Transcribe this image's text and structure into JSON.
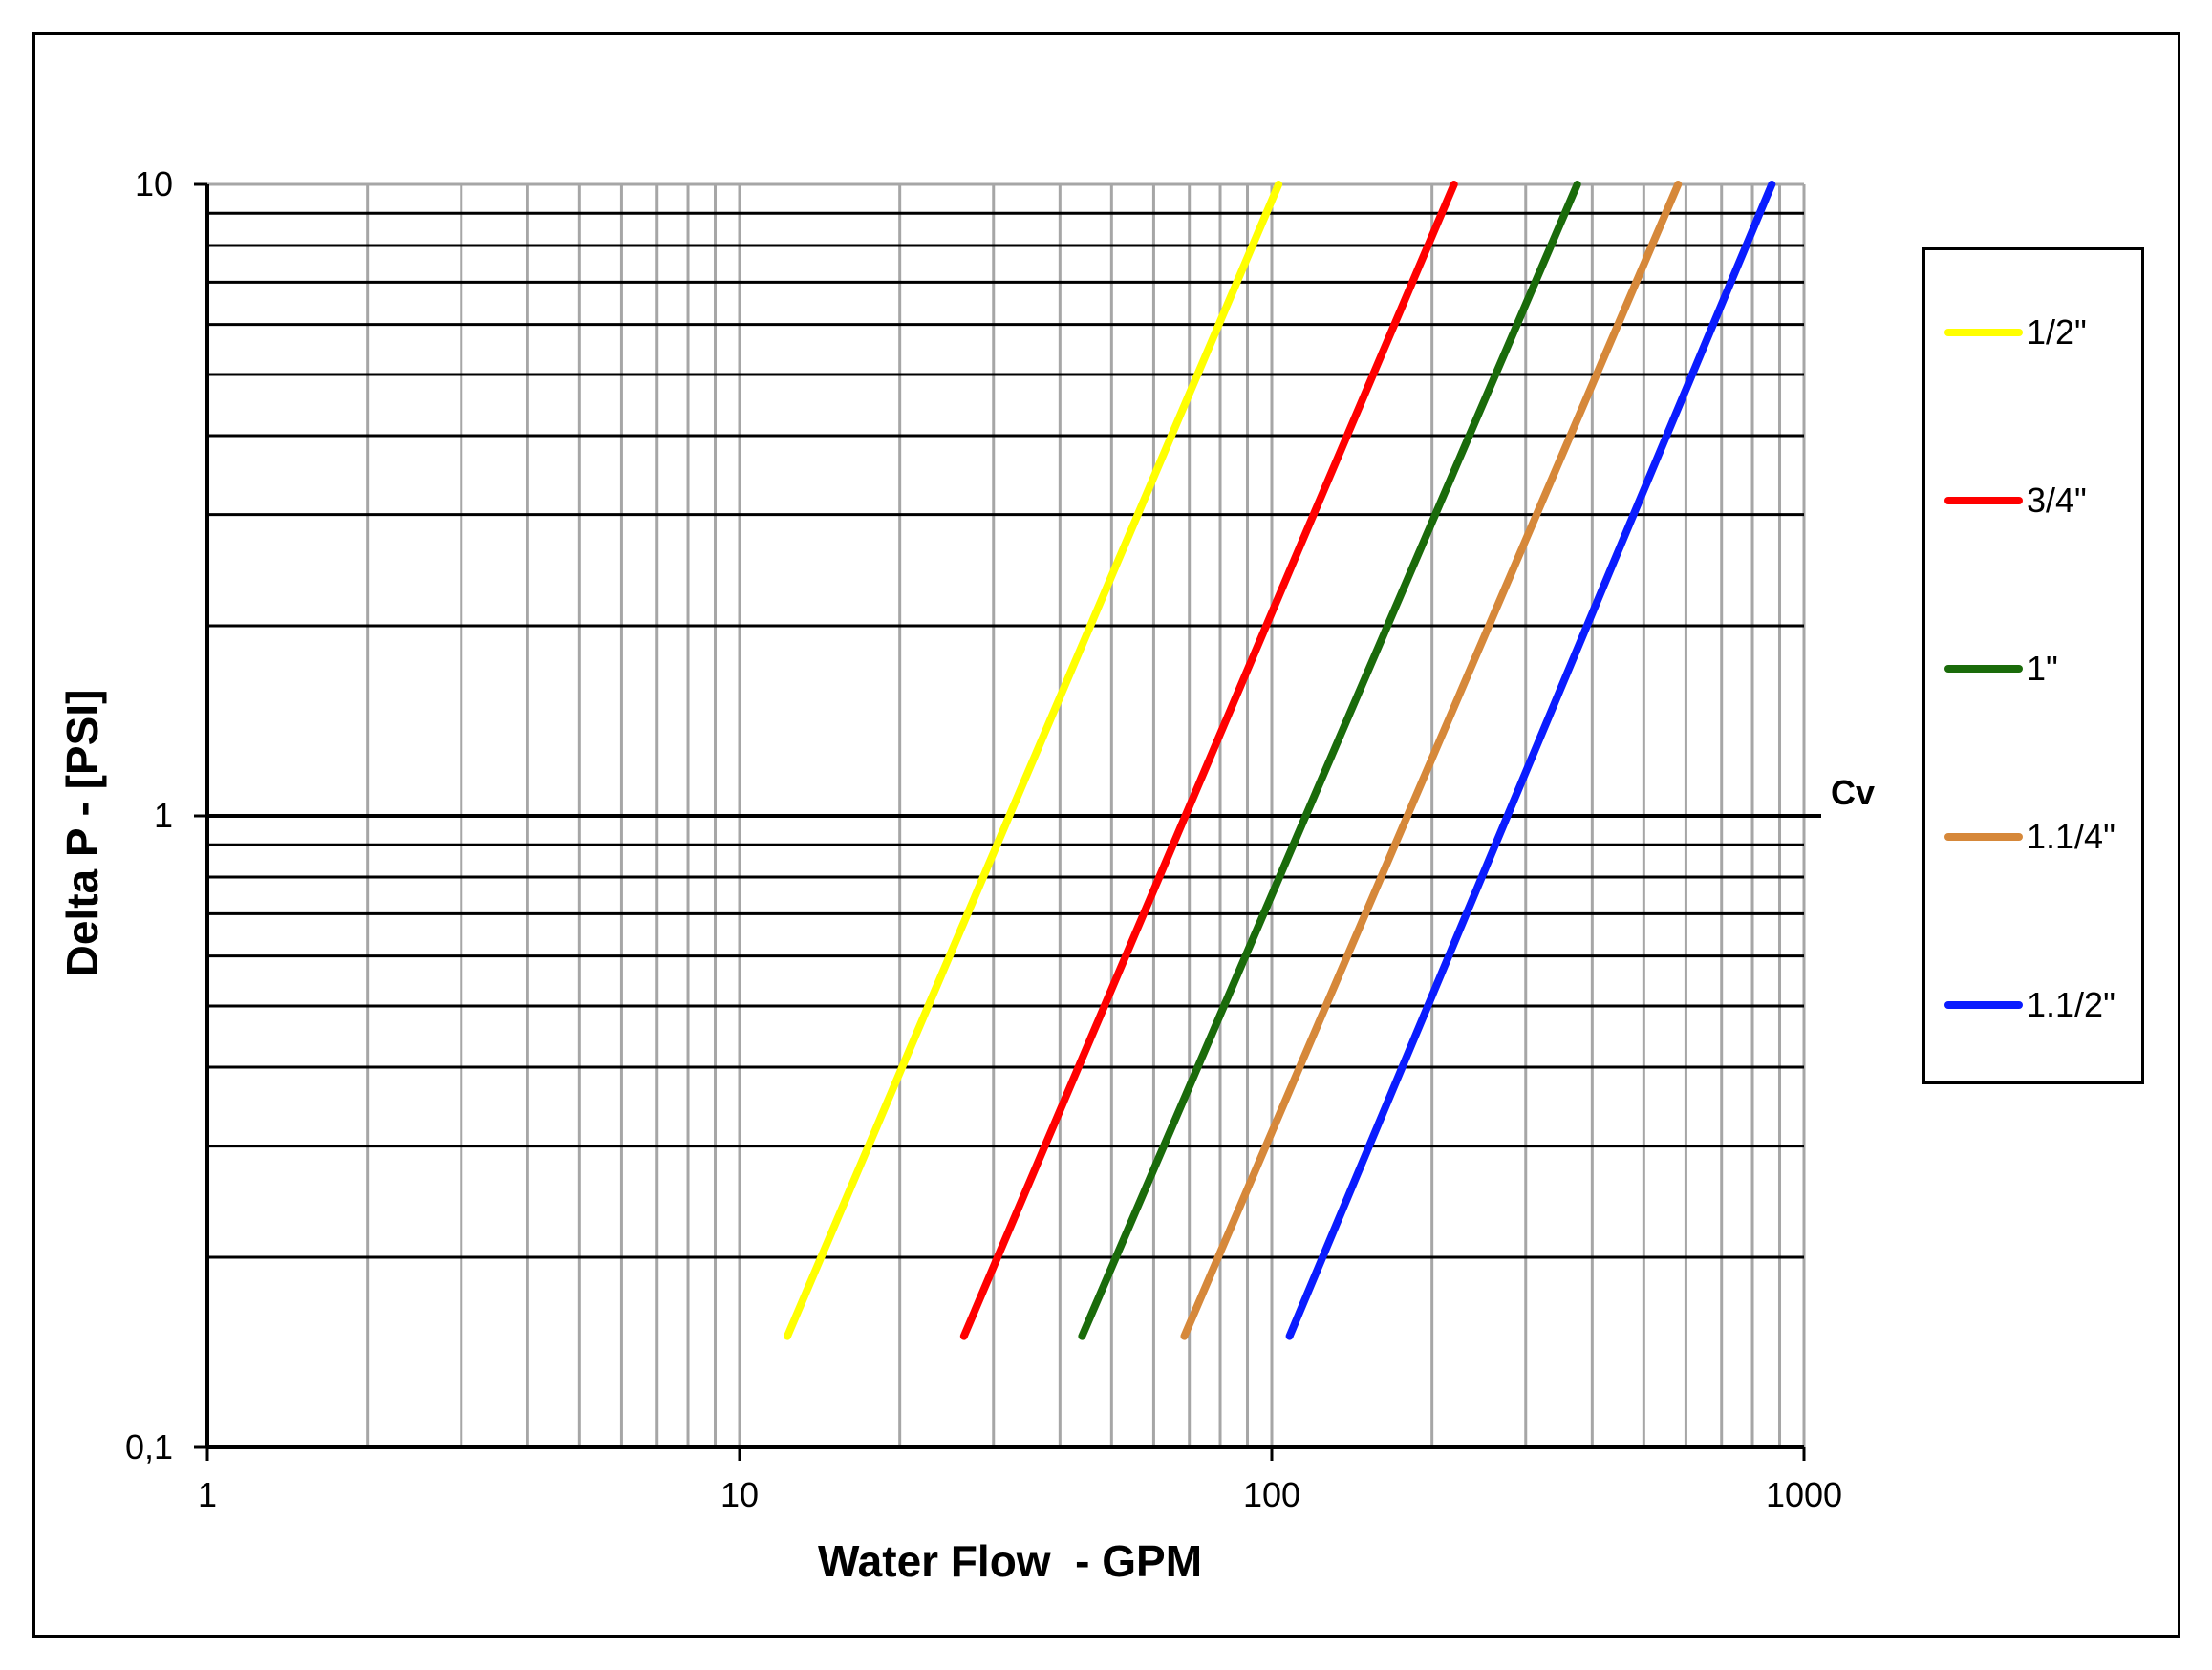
{
  "chart_data": {
    "type": "line",
    "xlabel": "Water Flow  - GPM",
    "ylabel": "Delta P - [PSI]",
    "x_scale": "log",
    "y_scale": "log",
    "xlim": [
      1,
      1000
    ],
    "ylim": [
      0.1,
      10
    ],
    "x_tick_labels": [
      "1",
      "10",
      "100",
      "1000"
    ],
    "y_tick_labels": [
      "0,1",
      "1",
      "10"
    ],
    "grid": true,
    "legend_position": "right",
    "reference_line": {
      "label": "Cv",
      "y": 1
    },
    "series": [
      {
        "name": "1/2\"",
        "color": "#ffff00",
        "x": [
          12.3,
          103
        ],
        "y": [
          0.15,
          10
        ]
      },
      {
        "name": "3/4\"",
        "color": "#ff0000",
        "x": [
          26.4,
          220
        ],
        "y": [
          0.15,
          10
        ]
      },
      {
        "name": "1\"",
        "color": "#1a6b0a",
        "x": [
          44.0,
          375
        ],
        "y": [
          0.15,
          10
        ]
      },
      {
        "name": "1.1/4\"",
        "color": "#d6883a",
        "x": [
          68.5,
          580
        ],
        "y": [
          0.15,
          10
        ]
      },
      {
        "name": "1.1/2\"",
        "color": "#0a1cff",
        "x": [
          108,
          870
        ],
        "y": [
          0.15,
          10
        ]
      }
    ]
  }
}
